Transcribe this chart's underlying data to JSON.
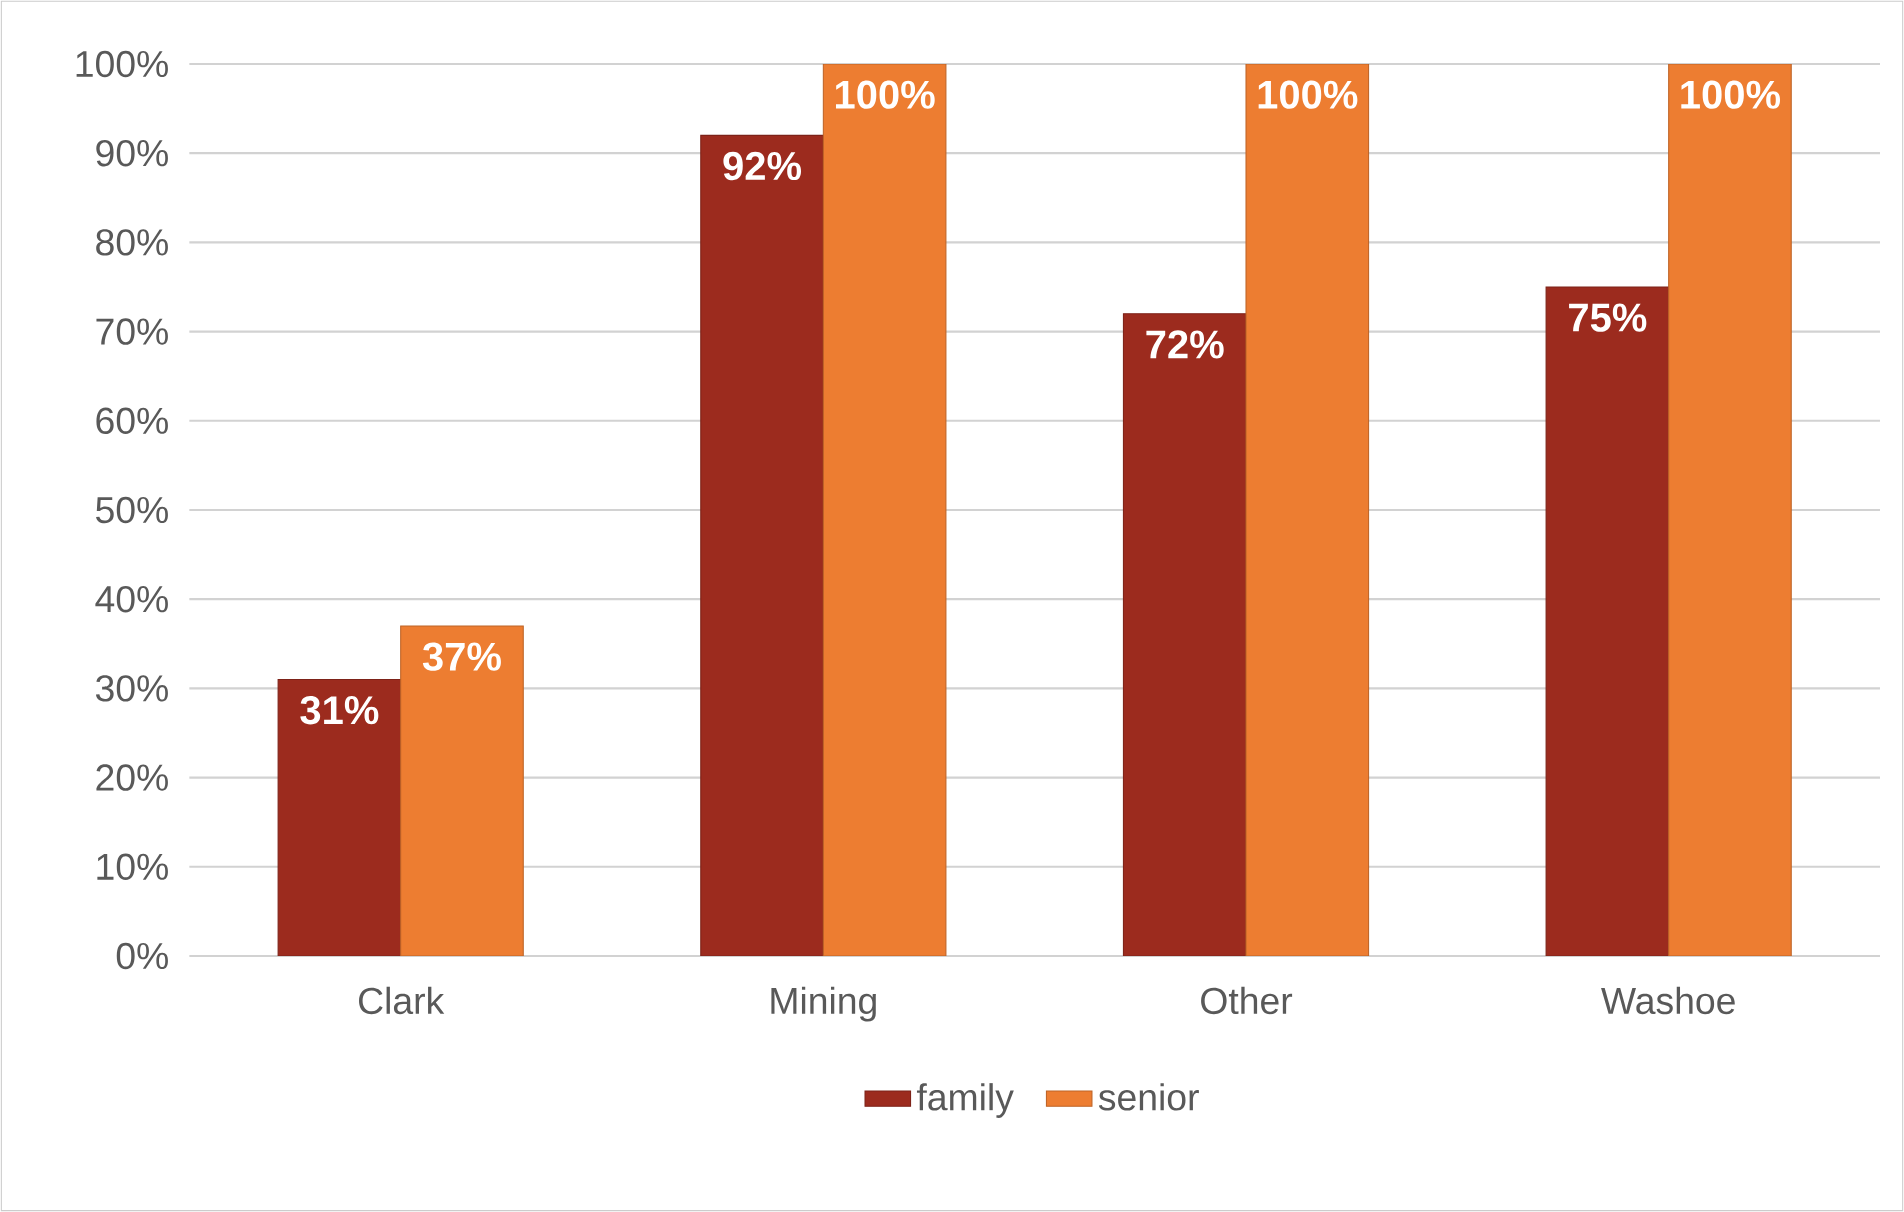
{
  "chart_data": {
    "type": "bar",
    "categories": [
      "Clark",
      "Mining",
      "Other",
      "Washoe"
    ],
    "series": [
      {
        "name": "family",
        "color": "#9c2b1e",
        "values": [
          31,
          92,
          72,
          75
        ],
        "value_labels": [
          "31%",
          "92%",
          "72%",
          "75%"
        ]
      },
      {
        "name": "senior",
        "color": "#ed7d31",
        "values": [
          37,
          100,
          100,
          100
        ],
        "value_labels": [
          "37%",
          "100%",
          "100%",
          "100%"
        ]
      }
    ],
    "ylim": [
      0,
      100
    ],
    "yticks": [
      {
        "value": 0,
        "label": "0%"
      },
      {
        "value": 10,
        "label": "10%"
      },
      {
        "value": 20,
        "label": "20%"
      },
      {
        "value": 30,
        "label": "30%"
      },
      {
        "value": 40,
        "label": "40%"
      },
      {
        "value": 50,
        "label": "50%"
      },
      {
        "value": 60,
        "label": "60%"
      },
      {
        "value": 70,
        "label": "70%"
      },
      {
        "value": 80,
        "label": "80%"
      },
      {
        "value": 90,
        "label": "90%"
      },
      {
        "value": 100,
        "label": "100%"
      }
    ],
    "grid": "y",
    "legend": "bottom"
  }
}
